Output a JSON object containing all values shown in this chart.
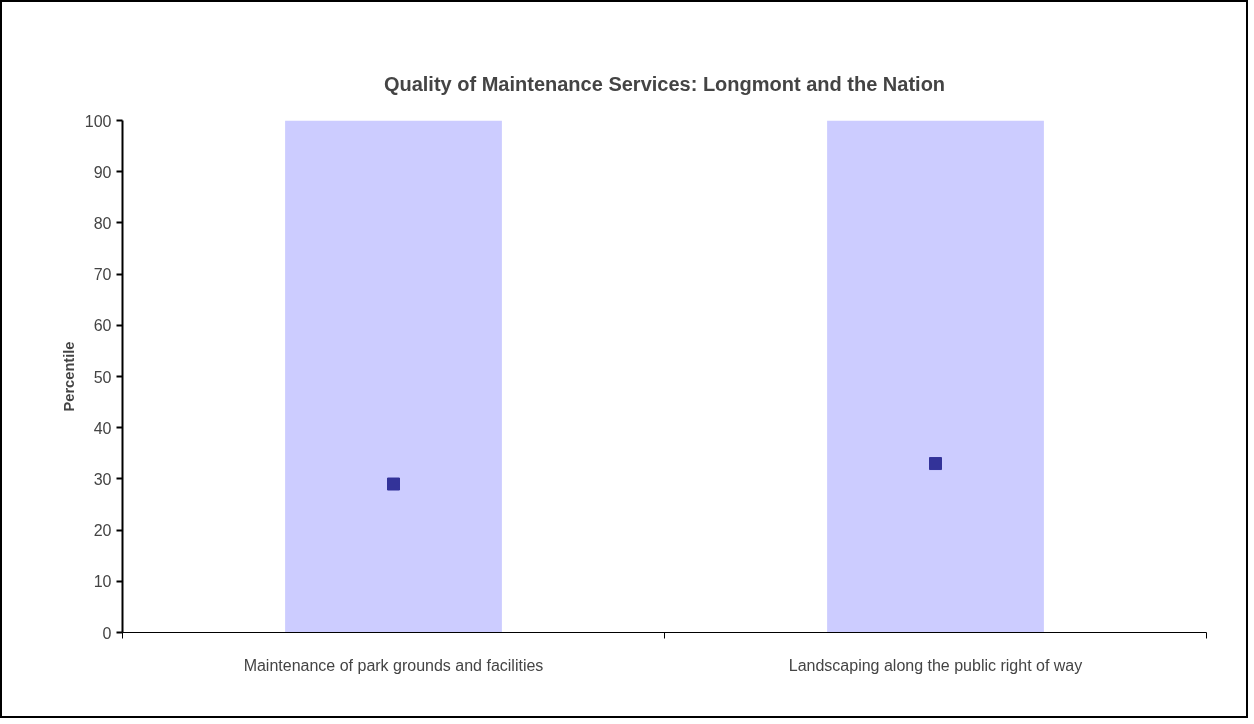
{
  "chart_data": {
    "type": "bar",
    "title": "Quality of Maintenance Services: Longmont and the Nation",
    "ylabel": "Percentile",
    "categories": [
      "Maintenance of park grounds and facilities",
      "Landscaping along the public right of way"
    ],
    "series": [
      {
        "color": "#ccccff",
        "values": [
          100,
          100
        ]
      },
      {
        "type": "scatter",
        "marker": "square",
        "color": "#333399",
        "values": [
          29,
          33
        ]
      }
    ],
    "ylim": [
      0,
      100
    ],
    "yticks": [
      0,
      10,
      20,
      30,
      40,
      50,
      60,
      70,
      80,
      90,
      100
    ],
    "grid": false
  }
}
